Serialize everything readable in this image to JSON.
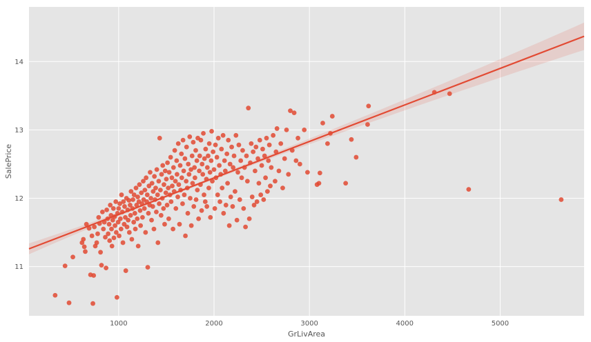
{
  "chart_data": {
    "type": "scatter",
    "title": "",
    "xlabel": "GrLivArea",
    "ylabel": "SalePrice",
    "xlim": [
      60,
      5880
    ],
    "ylim": [
      10.28,
      14.8
    ],
    "x_ticks": [
      1000,
      2000,
      3000,
      4000,
      5000
    ],
    "y_ticks": [
      11,
      12,
      13,
      14
    ],
    "grid": true,
    "colors": {
      "background": "#E5E5E5",
      "grid": "#FFFFFF",
      "points": "#E24A33",
      "ci_band": "#E24A33"
    },
    "regression": {
      "x": [
        60,
        5880
      ],
      "y": [
        11.26,
        14.37
      ],
      "ci_halfwidth_at_x_min": 0.08,
      "ci_halfwidth_at_center": 0.02,
      "ci_halfwidth_at_x_max": 0.2,
      "center_x": 1500
    },
    "points": [
      [
        334,
        10.58
      ],
      [
        438,
        11.01
      ],
      [
        480,
        10.47
      ],
      [
        520,
        11.14
      ],
      [
        616,
        11.35
      ],
      [
        630,
        11.4
      ],
      [
        640,
        11.29
      ],
      [
        650,
        11.22
      ],
      [
        662,
        11.62
      ],
      [
        690,
        11.56
      ],
      [
        705,
        10.88
      ],
      [
        720,
        11.45
      ],
      [
        730,
        10.46
      ],
      [
        738,
        10.87
      ],
      [
        745,
        11.58
      ],
      [
        755,
        11.3
      ],
      [
        770,
        11.35
      ],
      [
        780,
        11.48
      ],
      [
        790,
        11.72
      ],
      [
        800,
        11.63
      ],
      [
        810,
        11.21
      ],
      [
        820,
        11.02
      ],
      [
        830,
        11.8
      ],
      [
        840,
        11.55
      ],
      [
        850,
        11.65
      ],
      [
        860,
        11.43
      ],
      [
        868,
        10.98
      ],
      [
        875,
        11.83
      ],
      [
        885,
        11.7
      ],
      [
        890,
        11.48
      ],
      [
        900,
        11.62
      ],
      [
        905,
        11.38
      ],
      [
        912,
        11.9
      ],
      [
        920,
        11.75
      ],
      [
        925,
        11.55
      ],
      [
        930,
        11.3
      ],
      [
        938,
        11.68
      ],
      [
        945,
        11.85
      ],
      [
        950,
        11.42
      ],
      [
        958,
        11.73
      ],
      [
        962,
        11.6
      ],
      [
        970,
        11.95
      ],
      [
        975,
        11.5
      ],
      [
        982,
        10.55
      ],
      [
        988,
        11.78
      ],
      [
        995,
        11.65
      ],
      [
        1000,
        11.85
      ],
      [
        1005,
        11.45
      ],
      [
        1012,
        11.92
      ],
      [
        1018,
        11.7
      ],
      [
        1025,
        11.55
      ],
      [
        1030,
        12.05
      ],
      [
        1038,
        11.8
      ],
      [
        1045,
        11.35
      ],
      [
        1050,
        11.95
      ],
      [
        1058,
        11.62
      ],
      [
        1062,
        11.88
      ],
      [
        1070,
        11.72
      ],
      [
        1075,
        10.94
      ],
      [
        1082,
        12.0
      ],
      [
        1088,
        11.58
      ],
      [
        1095,
        11.83
      ],
      [
        1100,
        11.68
      ],
      [
        1108,
        11.97
      ],
      [
        1112,
        11.5
      ],
      [
        1120,
        11.9
      ],
      [
        1125,
        11.75
      ],
      [
        1130,
        12.1
      ],
      [
        1138,
        11.4
      ],
      [
        1145,
        11.85
      ],
      [
        1150,
        11.98
      ],
      [
        1158,
        11.65
      ],
      [
        1162,
        12.05
      ],
      [
        1170,
        11.78
      ],
      [
        1175,
        11.55
      ],
      [
        1182,
        12.15
      ],
      [
        1188,
        11.9
      ],
      [
        1195,
        11.7
      ],
      [
        1200,
        12.02
      ],
      [
        1205,
        11.3
      ],
      [
        1212,
        11.95
      ],
      [
        1218,
        12.2
      ],
      [
        1225,
        11.82
      ],
      [
        1230,
        11.6
      ],
      [
        1238,
        12.08
      ],
      [
        1245,
        11.92
      ],
      [
        1250,
        11.72
      ],
      [
        1258,
        12.25
      ],
      [
        1262,
        11.98
      ],
      [
        1270,
        11.85
      ],
      [
        1275,
        12.12
      ],
      [
        1282,
        11.5
      ],
      [
        1288,
        12.3
      ],
      [
        1295,
        11.95
      ],
      [
        1300,
        12.05
      ],
      [
        1305,
        10.99
      ],
      [
        1312,
        11.78
      ],
      [
        1318,
        12.18
      ],
      [
        1325,
        11.9
      ],
      [
        1330,
        12.38
      ],
      [
        1338,
        12.0
      ],
      [
        1345,
        11.68
      ],
      [
        1350,
        12.22
      ],
      [
        1358,
        11.88
      ],
      [
        1362,
        12.1
      ],
      [
        1370,
        11.55
      ],
      [
        1375,
        12.32
      ],
      [
        1382,
        11.98
      ],
      [
        1388,
        12.15
      ],
      [
        1395,
        11.8
      ],
      [
        1400,
        12.42
      ],
      [
        1408,
        12.05
      ],
      [
        1412,
        11.35
      ],
      [
        1420,
        12.25
      ],
      [
        1425,
        11.92
      ],
      [
        1430,
        12.88
      ],
      [
        1438,
        12.12
      ],
      [
        1445,
        11.75
      ],
      [
        1450,
        12.35
      ],
      [
        1458,
        12.0
      ],
      [
        1462,
        12.48
      ],
      [
        1470,
        11.85
      ],
      [
        1475,
        12.2
      ],
      [
        1482,
        11.62
      ],
      [
        1488,
        12.4
      ],
      [
        1495,
        12.08
      ],
      [
        1500,
        12.28
      ],
      [
        1508,
        11.9
      ],
      [
        1512,
        12.52
      ],
      [
        1520,
        12.15
      ],
      [
        1525,
        11.7
      ],
      [
        1530,
        12.38
      ],
      [
        1538,
        12.05
      ],
      [
        1545,
        12.6
      ],
      [
        1550,
        11.95
      ],
      [
        1558,
        12.3
      ],
      [
        1562,
        12.18
      ],
      [
        1570,
        11.55
      ],
      [
        1575,
        12.45
      ],
      [
        1582,
        12.1
      ],
      [
        1588,
        12.7
      ],
      [
        1595,
        12.25
      ],
      [
        1600,
        11.85
      ],
      [
        1608,
        12.55
      ],
      [
        1612,
        12.35
      ],
      [
        1620,
        12.02
      ],
      [
        1625,
        12.8
      ],
      [
        1630,
        12.2
      ],
      [
        1638,
        11.62
      ],
      [
        1645,
        12.48
      ],
      [
        1650,
        12.12
      ],
      [
        1658,
        12.65
      ],
      [
        1662,
        12.3
      ],
      [
        1670,
        11.92
      ],
      [
        1675,
        12.85
      ],
      [
        1682,
        12.4
      ],
      [
        1688,
        12.05
      ],
      [
        1695,
        12.58
      ],
      [
        1700,
        11.45
      ],
      [
        1708,
        12.25
      ],
      [
        1712,
        12.75
      ],
      [
        1720,
        12.15
      ],
      [
        1725,
        11.78
      ],
      [
        1730,
        12.5
      ],
      [
        1738,
        12.35
      ],
      [
        1745,
        12.9
      ],
      [
        1750,
        12.0
      ],
      [
        1758,
        12.42
      ],
      [
        1762,
        11.6
      ],
      [
        1770,
        12.62
      ],
      [
        1775,
        12.22
      ],
      [
        1782,
        12.82
      ],
      [
        1788,
        11.88
      ],
      [
        1795,
        12.45
      ],
      [
        1800,
        12.3
      ],
      [
        1808,
        12.7
      ],
      [
        1812,
        11.98
      ],
      [
        1820,
        12.55
      ],
      [
        1825,
        12.12
      ],
      [
        1830,
        12.88
      ],
      [
        1838,
        11.7
      ],
      [
        1845,
        12.4
      ],
      [
        1850,
        12.62
      ],
      [
        1858,
        12.2
      ],
      [
        1862,
        12.85
      ],
      [
        1870,
        11.82
      ],
      [
        1875,
        12.5
      ],
      [
        1882,
        12.35
      ],
      [
        1888,
        12.95
      ],
      [
        1895,
        12.05
      ],
      [
        1900,
        12.58
      ],
      [
        1908,
        11.95
      ],
      [
        1912,
        12.72
      ],
      [
        1920,
        12.28
      ],
      [
        1925,
        11.88
      ],
      [
        1930,
        12.45
      ],
      [
        1938,
        12.62
      ],
      [
        1945,
        12.15
      ],
      [
        1950,
        12.8
      ],
      [
        1958,
        12.38
      ],
      [
        1962,
        11.72
      ],
      [
        1970,
        12.55
      ],
      [
        1975,
        12.98
      ],
      [
        1982,
        12.25
      ],
      [
        1990,
        12.68
      ],
      [
        2000,
        12.42
      ],
      [
        2008,
        11.85
      ],
      [
        2015,
        12.78
      ],
      [
        2020,
        12.3
      ],
      [
        2030,
        12.6
      ],
      [
        2038,
        12.05
      ],
      [
        2045,
        12.88
      ],
      [
        2055,
        12.48
      ],
      [
        2062,
        11.95
      ],
      [
        2070,
        12.35
      ],
      [
        2078,
        12.72
      ],
      [
        2085,
        12.15
      ],
      [
        2095,
        12.92
      ],
      [
        2100,
        11.78
      ],
      [
        2110,
        12.55
      ],
      [
        2118,
        12.4
      ],
      [
        2125,
        11.9
      ],
      [
        2135,
        12.65
      ],
      [
        2142,
        12.22
      ],
      [
        2150,
        12.85
      ],
      [
        2160,
        11.6
      ],
      [
        2168,
        12.5
      ],
      [
        2175,
        12.02
      ],
      [
        2185,
        12.75
      ],
      [
        2195,
        11.88
      ],
      [
        2200,
        12.45
      ],
      [
        2210,
        12.62
      ],
      [
        2220,
        12.1
      ],
      [
        2230,
        12.92
      ],
      [
        2240,
        11.68
      ],
      [
        2250,
        12.38
      ],
      [
        2260,
        12.78
      ],
      [
        2270,
        11.98
      ],
      [
        2280,
        12.55
      ],
      [
        2290,
        12.3
      ],
      [
        2300,
        12.7
      ],
      [
        2310,
        11.85
      ],
      [
        2320,
        12.45
      ],
      [
        2330,
        11.58
      ],
      [
        2340,
        12.62
      ],
      [
        2350,
        12.25
      ],
      [
        2360,
        13.32
      ],
      [
        2370,
        11.7
      ],
      [
        2380,
        12.52
      ],
      [
        2390,
        12.8
      ],
      [
        2400,
        12.02
      ],
      [
        2410,
        12.68
      ],
      [
        2420,
        11.9
      ],
      [
        2430,
        12.4
      ],
      [
        2440,
        12.75
      ],
      [
        2450,
        11.95
      ],
      [
        2460,
        12.58
      ],
      [
        2470,
        12.22
      ],
      [
        2480,
        12.85
      ],
      [
        2490,
        12.05
      ],
      [
        2500,
        12.48
      ],
      [
        2510,
        12.72
      ],
      [
        2520,
        11.98
      ],
      [
        2530,
        12.62
      ],
      [
        2540,
        12.3
      ],
      [
        2550,
        12.88
      ],
      [
        2560,
        12.1
      ],
      [
        2570,
        12.55
      ],
      [
        2580,
        12.78
      ],
      [
        2590,
        12.18
      ],
      [
        2600,
        12.45
      ],
      [
        2620,
        12.92
      ],
      [
        2640,
        12.25
      ],
      [
        2650,
        12.68
      ],
      [
        2660,
        13.02
      ],
      [
        2680,
        12.4
      ],
      [
        2700,
        12.8
      ],
      [
        2720,
        12.15
      ],
      [
        2740,
        12.58
      ],
      [
        2760,
        13.0
      ],
      [
        2780,
        12.35
      ],
      [
        2800,
        13.28
      ],
      [
        2820,
        12.7
      ],
      [
        2840,
        13.25
      ],
      [
        2860,
        12.55
      ],
      [
        2880,
        12.88
      ],
      [
        2900,
        12.5
      ],
      [
        2946,
        13.0
      ],
      [
        2980,
        12.38
      ],
      [
        3080,
        12.2
      ],
      [
        3100,
        12.22
      ],
      [
        3110,
        12.37
      ],
      [
        3140,
        13.1
      ],
      [
        3190,
        12.8
      ],
      [
        3220,
        12.95
      ],
      [
        3240,
        13.2
      ],
      [
        3380,
        12.22
      ],
      [
        3440,
        12.86
      ],
      [
        3490,
        12.6
      ],
      [
        3610,
        13.08
      ],
      [
        3620,
        13.35
      ],
      [
        4310,
        13.55
      ],
      [
        4470,
        13.53
      ],
      [
        4670,
        12.13
      ],
      [
        5640,
        11.98
      ]
    ]
  }
}
